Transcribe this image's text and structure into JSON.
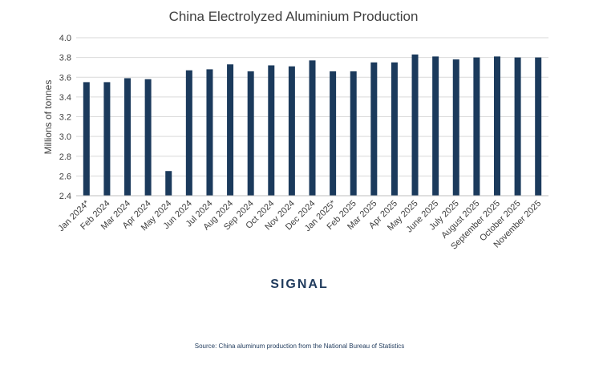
{
  "chart_data": {
    "type": "bar",
    "title": "China Electrolyzed Aluminium Production",
    "xlabel": "",
    "ylabel": "Millions of tonnes",
    "ylim": [
      2.4,
      4.0
    ],
    "yticks": [
      "2.4",
      "2.6",
      "2.8",
      "3.0",
      "3.2",
      "3.4",
      "3.6",
      "3.8",
      "4.0"
    ],
    "grid": true,
    "color": "#1b3a5c",
    "categories": [
      "Jan 2024*",
      "Feb 2024",
      "Mar 2024",
      "Apr 2024",
      "May 2024",
      "Jun 2024",
      "Jul 2024",
      "Aug 2024",
      "Sep 2024",
      "Oct 2024",
      "Nov 2024",
      "Dec 2024",
      "Jan 2025*",
      "Feb 2025",
      "Mar 2025",
      "Apr 2025",
      "May 2025",
      "June 2025",
      "July 2025",
      "August 2025",
      "September 2025",
      "October 2025",
      "November 2025"
    ],
    "values": [
      3.55,
      3.55,
      3.59,
      3.58,
      2.65,
      3.67,
      3.68,
      3.73,
      3.66,
      3.72,
      3.71,
      3.77,
      3.66,
      3.66,
      3.75,
      3.75,
      3.83,
      3.81,
      3.78,
      3.8,
      3.81,
      3.8,
      3.8
    ]
  },
  "logo": "SIGNAL",
  "source": "Source: China aluminum production from the National Bureau of Statistics"
}
